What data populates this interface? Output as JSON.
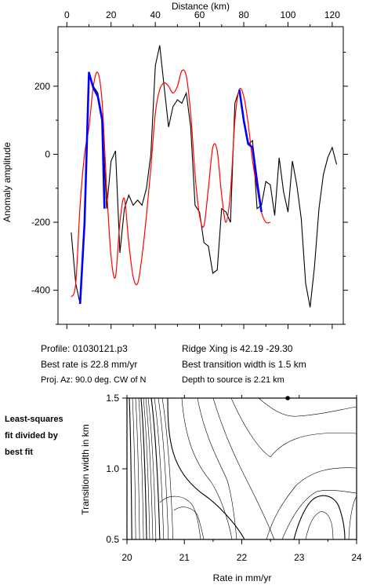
{
  "info": {
    "profile": "Profile: 01030121.p3",
    "ridge_xing": "Ridge Xing is 42.19 -29.30",
    "best_rate": "Best rate is 22.8 mm/yr",
    "best_transition": "Best transition width is 1.5 km",
    "proj_az": "Proj. Az: 90.0 deg. CW of N",
    "depth": "Depth to source is   2.21 km"
  },
  "side_label": [
    "Least-squares",
    "fit divided by",
    "best fit"
  ],
  "colors": {
    "observed": "#000000",
    "model": "#ff0000",
    "fit_window": "#0000ff"
  },
  "chart_data": [
    {
      "type": "line",
      "xlabel": "Distance (km)",
      "ylabel": "Anomaly amplitude",
      "xlim": [
        -4,
        125
      ],
      "ylim": [
        -500,
        375
      ],
      "xticks": [
        "0",
        "20",
        "40",
        "60",
        "80",
        "100",
        "120"
      ],
      "yticks": [
        "-400",
        "-200",
        "0",
        "200"
      ],
      "x_axis_position": "top",
      "series": [
        {
          "role": "observed",
          "x": [
            2,
            4,
            6,
            8,
            10,
            12,
            14,
            16,
            18,
            20,
            22,
            24,
            26,
            28,
            30,
            32,
            34,
            36,
            38,
            40,
            42,
            44,
            46,
            48,
            50,
            52,
            54,
            56,
            58,
            60,
            62,
            64,
            66,
            68,
            70,
            72,
            74,
            76,
            78,
            80,
            82,
            84,
            86,
            88,
            90,
            92,
            94,
            96,
            98,
            100,
            102,
            104,
            106,
            108,
            110,
            112,
            114,
            116,
            118,
            120,
            122
          ],
          "y": [
            -230,
            -380,
            -440,
            -220,
            240,
            200,
            180,
            110,
            -160,
            -20,
            10,
            -290,
            -160,
            -120,
            -150,
            -135,
            -150,
            -100,
            0,
            260,
            320,
            200,
            80,
            140,
            160,
            150,
            180,
            80,
            -150,
            -170,
            -260,
            -270,
            -350,
            -340,
            -160,
            -170,
            -200,
            150,
            190,
            100,
            30,
            40,
            -160,
            -150,
            -80,
            -90,
            -180,
            -10,
            -110,
            -170,
            -20,
            -90,
            -190,
            -380,
            -450,
            -330,
            -160,
            -60,
            -10,
            20,
            -30
          ]
        },
        {
          "role": "model",
          "x": [
            2,
            4,
            6,
            8,
            10,
            12,
            14,
            16,
            18,
            20,
            22,
            24,
            26,
            28,
            30,
            32,
            34,
            36,
            38,
            40,
            42,
            44,
            46,
            48,
            50,
            52,
            54,
            56,
            58,
            60,
            62,
            64,
            66,
            68,
            70,
            72,
            74,
            76,
            78,
            80,
            82,
            84,
            86,
            88,
            90,
            92
          ],
          "y": [
            -420,
            -380,
            -150,
            0,
            80,
            200,
            240,
            150,
            -100,
            -300,
            -360,
            -200,
            -130,
            -260,
            -360,
            -380,
            -300,
            -180,
            -40,
            120,
            190,
            210,
            200,
            180,
            200,
            245,
            230,
            120,
            -60,
            -180,
            -210,
            -100,
            20,
            10,
            -120,
            -200,
            -110,
            100,
            190,
            170,
            90,
            -20,
            -100,
            -170,
            -200,
            -200
          ]
        },
        {
          "role": "fit_window",
          "x": [
            6,
            8,
            10,
            12,
            14,
            16,
            17,
            76,
            78,
            80,
            82,
            84,
            86,
            88
          ],
          "y": [
            -440,
            -200,
            240,
            195,
            170,
            100,
            -160,
            null,
            190,
            100,
            30,
            20,
            -80,
            -170
          ]
        }
      ]
    },
    {
      "type": "contour",
      "xlabel": "Rate in mm/yr",
      "ylabel": "Transition width in km",
      "xlim": [
        20,
        24
      ],
      "ylim": [
        0.5,
        1.5
      ],
      "xticks": [
        "20",
        "21",
        "22",
        "23",
        "24"
      ],
      "yticks": [
        "0.5",
        "1.0",
        "1.5"
      ],
      "best_fit_point": {
        "x": 22.8,
        "y": 1.5
      }
    }
  ]
}
